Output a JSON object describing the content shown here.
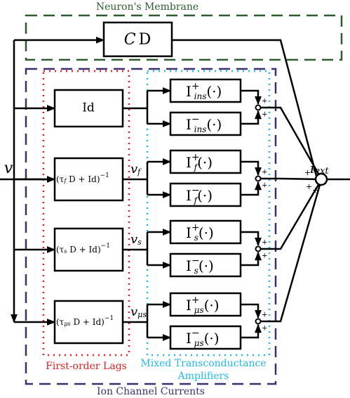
{
  "membrane": {
    "title": "Neuron's Membrane",
    "block": {
      "italic": "C",
      "roman": "D"
    }
  },
  "input": "v",
  "output": {
    "base": "i",
    "sub": "ext",
    "signs": [
      "+",
      "+",
      "+",
      "+"
    ]
  },
  "lags": {
    "title": "First-order Lags",
    "blocks": [
      {
        "text": "Id"
      },
      {
        "pre": "(τ",
        "sub": "f",
        "post": " D + Id)",
        "sup": "−1",
        "signal": {
          "base": "v",
          "sub": "f"
        }
      },
      {
        "pre": "(τ",
        "sub": "s",
        "post": " D + Id)",
        "sup": "−1",
        "signal": {
          "base": "v",
          "sub": "s"
        }
      },
      {
        "pre": "(τ",
        "sub": "μs",
        "post": " D + Id)",
        "sup": "−1",
        "signal": {
          "base": "v",
          "sub": "μs"
        }
      }
    ]
  },
  "amplifiers": {
    "title": [
      "Mixed Transconductance",
      "Amplifiers"
    ],
    "rows": [
      [
        {
          "base": "I",
          "sup": "+",
          "sub": "ins",
          "arg": "(·)"
        },
        {
          "base": "I",
          "sup": "−",
          "sub": "ins",
          "arg": "(·)"
        }
      ],
      [
        {
          "base": "I",
          "sup": "+",
          "sub": "f",
          "arg": "(·)"
        },
        {
          "base": "I",
          "sup": "−",
          "sub": "f",
          "arg": "(·)"
        }
      ],
      [
        {
          "base": "I",
          "sup": "+",
          "sub": "s",
          "arg": "(·)"
        },
        {
          "base": "I",
          "sup": "−",
          "sub": "s",
          "arg": "(·)"
        }
      ],
      [
        {
          "base": "I",
          "sup": "+",
          "sub": "μs",
          "arg": "(·)"
        },
        {
          "base": "I",
          "sup": "−",
          "sub": "μs",
          "arg": "(·)"
        }
      ]
    ],
    "junction_signs": [
      "+",
      "+"
    ]
  },
  "channels": {
    "title": "Ion Channel Currents"
  }
}
